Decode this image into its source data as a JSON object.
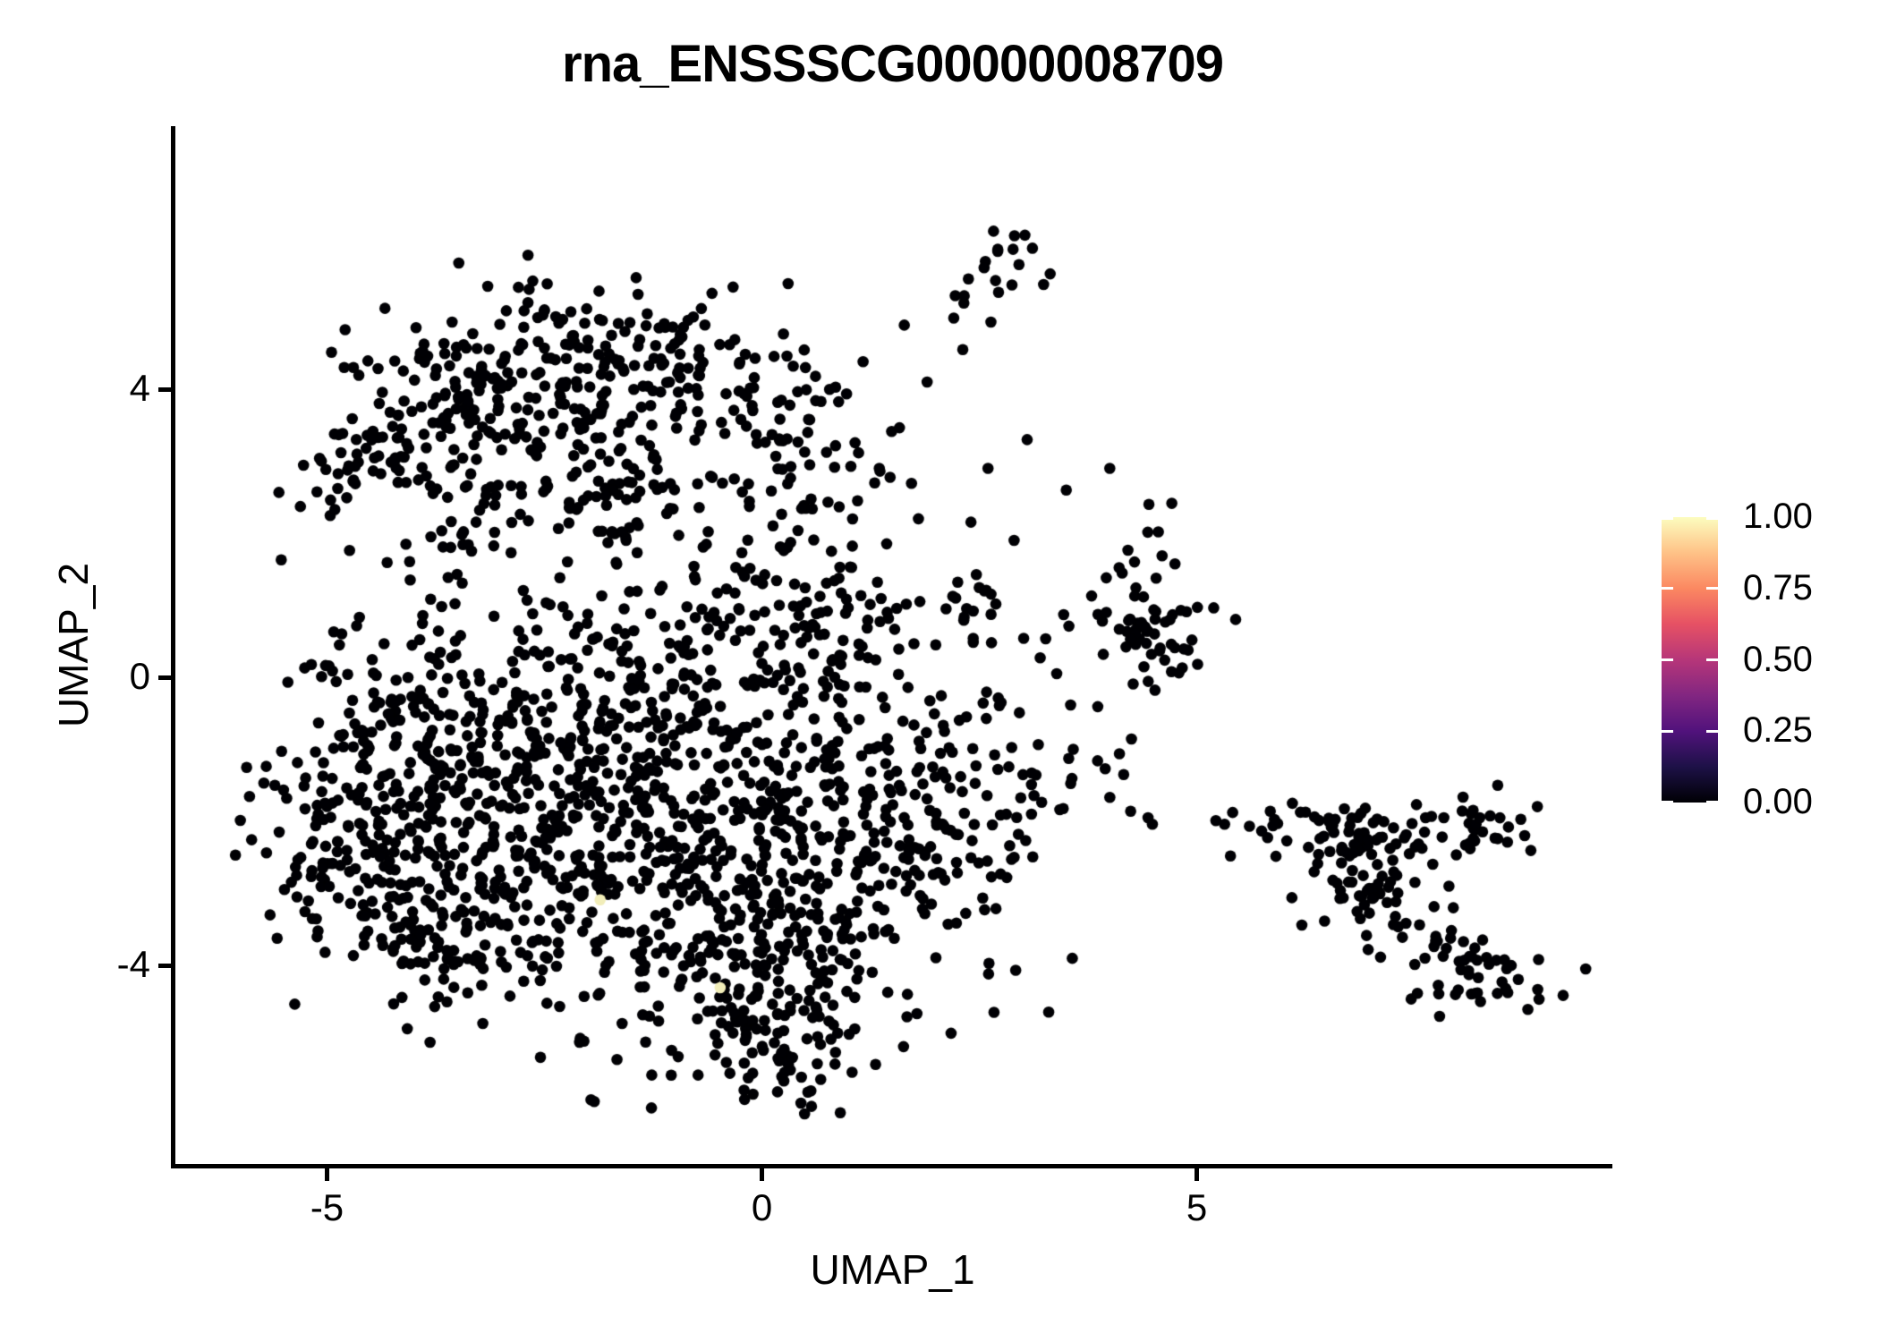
{
  "chart_data": {
    "type": "scatter",
    "title": "rna_ENSSSCG00000008709",
    "xlabel": "UMAP_1",
    "ylabel": "UMAP_2",
    "x_ticks": {
      "values": [
        -5,
        0,
        5
      ],
      "labels": [
        "-5",
        "0",
        "5"
      ]
    },
    "y_ticks": {
      "values": [
        4,
        0,
        -4
      ],
      "labels": [
        "4",
        "0",
        "-4"
      ]
    },
    "x_range": [
      -6.8,
      9.8
    ],
    "y_range": [
      -6.8,
      7.65
    ],
    "grid": false,
    "legend_position": "right",
    "colorbar": {
      "breaks": [
        1.0,
        0.75,
        0.5,
        0.25,
        0.0
      ],
      "labels": [
        "1.00",
        "0.75",
        "0.50",
        "0.25",
        "0.00"
      ],
      "gradient_bottom_to_top": [
        "#000004",
        "#1D1147",
        "#51127C",
        "#822681",
        "#B63679",
        "#E65164",
        "#FB8861",
        "#FEC287",
        "#FCFDBF"
      ],
      "tick_color": "#ffffff"
    },
    "point": {
      "radius_px": 6.3,
      "color": "#000004",
      "highlight_color": "#F1EDB9"
    },
    "seed": 42,
    "clusters": [
      {
        "kind": "gauss",
        "name": "top-knot",
        "x": 2.78,
        "y": 5.85,
        "sx": 0.22,
        "sy": 0.28,
        "n": 17
      },
      {
        "kind": "line",
        "name": "top-trail",
        "x1": 0.35,
        "y1": 3.75,
        "x2": 2.4,
        "y2": 5.35,
        "jitter": 0.14,
        "n": 10
      },
      {
        "kind": "gauss",
        "name": "north-blob-top",
        "x": -2.0,
        "y": 4.55,
        "sx": 1.15,
        "sy": 0.5,
        "n": 150
      },
      {
        "kind": "gauss",
        "name": "north-blob-left",
        "x": -3.55,
        "y": 3.45,
        "sx": 0.8,
        "sy": 0.6,
        "n": 100
      },
      {
        "kind": "gauss",
        "name": "north-blob-center",
        "x": -1.35,
        "y": 3.3,
        "sx": 1.05,
        "sy": 0.7,
        "n": 130
      },
      {
        "kind": "gauss",
        "name": "north-blob-right-column",
        "x": 0.25,
        "y": 2.7,
        "sx": 0.6,
        "sy": 0.95,
        "n": 65
      },
      {
        "kind": "gauss",
        "name": "north-blob-lower",
        "x": -2.7,
        "y": 2.25,
        "sx": 1.05,
        "sy": 0.55,
        "n": 70
      },
      {
        "kind": "line",
        "name": "north-blob-left-arm",
        "x1": -4.95,
        "y1": 2.55,
        "x2": -3.3,
        "y2": 4.05,
        "jitter": 0.28,
        "n": 45
      },
      {
        "kind": "gauss",
        "name": "main-left-upper",
        "x": -3.95,
        "y": -0.55,
        "sx": 0.85,
        "sy": 0.95,
        "n": 170
      },
      {
        "kind": "gauss",
        "name": "main-left-lower",
        "x": -4.35,
        "y": -2.2,
        "sx": 0.75,
        "sy": 0.85,
        "n": 160
      },
      {
        "kind": "gauss",
        "name": "main-centerleft",
        "x": -2.6,
        "y": -1.2,
        "sx": 0.95,
        "sy": 1.05,
        "n": 190
      },
      {
        "kind": "gauss",
        "name": "main-center-top",
        "x": -1.2,
        "y": -0.25,
        "sx": 0.95,
        "sy": 0.85,
        "n": 150
      },
      {
        "kind": "gauss",
        "name": "main-center",
        "x": -1.6,
        "y": -2.6,
        "sx": 0.95,
        "sy": 0.95,
        "n": 180
      },
      {
        "kind": "gauss",
        "name": "main-centerright",
        "x": -0.1,
        "y": -1.55,
        "sx": 0.85,
        "sy": 0.95,
        "n": 150
      },
      {
        "kind": "gauss",
        "name": "main-right-lower",
        "x": 0.9,
        "y": -2.85,
        "sx": 0.85,
        "sy": 0.85,
        "n": 150
      },
      {
        "kind": "gauss",
        "name": "main-right-lobe",
        "x": 2.0,
        "y": -1.6,
        "sx": 0.8,
        "sy": 0.85,
        "n": 140
      },
      {
        "kind": "gauss",
        "name": "main-bottom-wedge",
        "x": -0.35,
        "y": -4.2,
        "sx": 0.95,
        "sy": 0.65,
        "n": 140
      },
      {
        "kind": "gauss",
        "name": "main-bottom-tip",
        "x": 0.3,
        "y": -5.1,
        "sx": 0.6,
        "sy": 0.45,
        "n": 70
      },
      {
        "kind": "gauss",
        "name": "main-lowerleft-knot",
        "x": -3.0,
        "y": -3.55,
        "sx": 0.65,
        "sy": 0.55,
        "n": 80
      },
      {
        "kind": "gauss",
        "name": "main-top-connector",
        "x": 0.6,
        "y": 0.55,
        "sx": 0.75,
        "sy": 0.75,
        "n": 90
      },
      {
        "kind": "line",
        "name": "main-lowerleft-edge",
        "x1": -4.95,
        "y1": -2.5,
        "x2": -3.3,
        "y2": -4.3,
        "jitter": 0.35,
        "n": 50
      },
      {
        "kind": "gauss",
        "name": "small-mid-cluster",
        "x": 2.25,
        "y": 1.1,
        "sx": 0.3,
        "sy": 0.24,
        "n": 15
      },
      {
        "kind": "gauss",
        "name": "midright-cluster",
        "x": 4.45,
        "y": 0.62,
        "sx": 0.36,
        "sy": 0.36,
        "n": 55
      },
      {
        "kind": "gauss",
        "name": "midright-top-arm",
        "x": 4.38,
        "y": 1.75,
        "sx": 0.22,
        "sy": 0.3,
        "n": 10
      },
      {
        "kind": "line",
        "name": "right-band",
        "x1": 5.6,
        "y1": -2.05,
        "x2": 8.6,
        "y2": -2.2,
        "jitter": 0.22,
        "n": 50
      },
      {
        "kind": "gauss",
        "name": "right-mid-knot",
        "x": 6.9,
        "y": -2.55,
        "sx": 0.4,
        "sy": 0.5,
        "n": 55
      },
      {
        "kind": "line",
        "name": "right-diagonal",
        "x1": 6.95,
        "y1": -2.9,
        "x2": 8.2,
        "y2": -4.05,
        "jitter": 0.2,
        "n": 32
      },
      {
        "kind": "gauss",
        "name": "right-bottom-knot",
        "x": 8.3,
        "y": -4.25,
        "sx": 0.45,
        "sy": 0.25,
        "n": 40
      },
      {
        "kind": "gauss",
        "name": "right-top-knot",
        "x": 8.35,
        "y": -2.1,
        "sx": 0.3,
        "sy": 0.28,
        "n": 22
      }
    ],
    "singles": [
      [
        2.31,
        4.55
      ],
      [
        1.9,
        4.1
      ],
      [
        0.55,
        2.95
      ],
      [
        1.1,
        2.45
      ],
      [
        1.35,
        2.9
      ],
      [
        0.8,
        1.75
      ],
      [
        1.8,
        2.2
      ],
      [
        2.6,
        2.9
      ],
      [
        2.9,
        1.9
      ],
      [
        3.5,
        2.6
      ],
      [
        4.0,
        2.9
      ],
      [
        4.45,
        2.4
      ],
      [
        3.05,
        3.3
      ],
      [
        2.43,
        0.92
      ],
      [
        2.43,
        0.54
      ],
      [
        2.64,
        0.48
      ],
      [
        3.01,
        0.54
      ],
      [
        3.2,
        0.27
      ],
      [
        3.39,
        0.05
      ],
      [
        3.47,
        0.87
      ],
      [
        3.53,
        0.71
      ],
      [
        3.96,
        1.38
      ],
      [
        5.01,
        0.18
      ],
      [
        3.58,
        -1.0
      ],
      [
        3.86,
        -1.16
      ],
      [
        4.16,
        -1.35
      ],
      [
        4.24,
        -1.86
      ],
      [
        4.44,
        -1.95
      ],
      [
        4.49,
        -2.04
      ],
      [
        5.22,
        -1.99
      ],
      [
        5.32,
        -2.04
      ],
      [
        -5.6,
        -1.5
      ],
      [
        -5.55,
        -2.15
      ],
      [
        -5.35,
        -2.75
      ],
      [
        2.75,
        -0.35
      ],
      [
        3.1,
        -1.9
      ],
      [
        2.9,
        -2.5
      ],
      [
        6.35,
        -2.7
      ],
      [
        7.3,
        -2.75
      ],
      [
        7.9,
        -2.9
      ],
      [
        7.95,
        -3.2
      ],
      [
        6.1,
        -1.75
      ],
      [
        -0.2,
        1.4
      ],
      [
        0.2,
        1.0
      ],
      [
        -0.55,
        0.9
      ]
    ],
    "highlighted_cells": [
      {
        "x": -1.86,
        "y": -3.09,
        "value": 0.97
      },
      {
        "x": -0.48,
        "y": -4.31,
        "value": 0.95
      }
    ]
  }
}
